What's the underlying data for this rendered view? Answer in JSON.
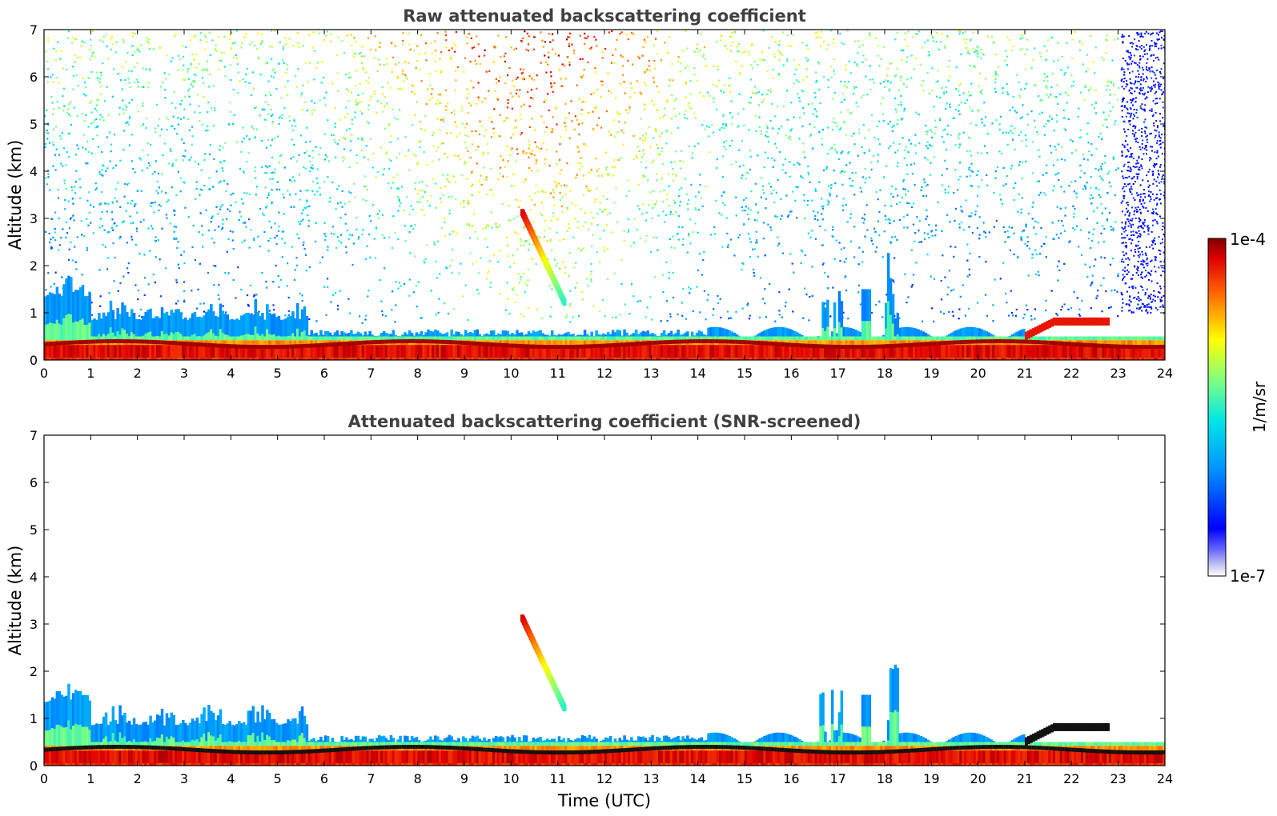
{
  "figure": {
    "colorbar": {
      "max_label": "1e-4",
      "min_label": "1e-7",
      "unit_label": "1/m/sr",
      "scale": "log",
      "range": [
        1e-07,
        0.0001
      ],
      "colormap": "jet"
    }
  },
  "chart_data": [
    {
      "type": "heatmap",
      "title": "Raw attenuated backscattering coefficient",
      "xlabel": "",
      "ylabel": "Altitude (km)",
      "xlim": [
        0,
        24
      ],
      "ylim": [
        0,
        7
      ],
      "xticks": [
        "0",
        "1",
        "2",
        "3",
        "4",
        "5",
        "6",
        "7",
        "8",
        "9",
        "10",
        "11",
        "12",
        "13",
        "14",
        "15",
        "16",
        "17",
        "18",
        "19",
        "20",
        "21",
        "22",
        "23",
        "24"
      ],
      "yticks": [
        "0",
        "1",
        "2",
        "3",
        "4",
        "5",
        "6",
        "7"
      ],
      "grid": false,
      "features": [
        {
          "kind": "boundary_layer",
          "t": [
            0,
            24
          ],
          "alt_top": 0.5
        },
        {
          "kind": "aerosol_plumes",
          "t": [
            0,
            5.6
          ],
          "alt_top": 1.5
        },
        {
          "kind": "cloud_fall",
          "t": [
            10.2,
            11.1
          ],
          "alt": [
            3.2,
            1.3
          ]
        },
        {
          "kind": "elevated_layer",
          "t": [
            21.0,
            22.8
          ],
          "alt": 0.85
        },
        {
          "kind": "background_noise",
          "t": [
            0,
            23
          ],
          "alt": [
            1,
            7
          ]
        }
      ]
    },
    {
      "type": "heatmap",
      "title": "Attenuated backscattering coefficient (SNR-screened)",
      "xlabel": "Time (UTC)",
      "ylabel": "Altitude (km)",
      "xlim": [
        0,
        24
      ],
      "ylim": [
        0,
        7
      ],
      "xticks": [
        "0",
        "1",
        "2",
        "3",
        "4",
        "5",
        "6",
        "7",
        "8",
        "9",
        "10",
        "11",
        "12",
        "13",
        "14",
        "15",
        "16",
        "17",
        "18",
        "19",
        "20",
        "21",
        "22",
        "23",
        "24"
      ],
      "yticks": [
        "0",
        "1",
        "2",
        "3",
        "4",
        "5",
        "6",
        "7"
      ],
      "grid": false,
      "features": [
        {
          "kind": "boundary_layer",
          "t": [
            0,
            24
          ],
          "alt_top": 0.5
        },
        {
          "kind": "aerosol_plumes",
          "t": [
            0,
            5.6
          ],
          "alt_top": 1.5
        },
        {
          "kind": "cloud_fall",
          "t": [
            10.2,
            11.1
          ],
          "alt": [
            3.2,
            1.3
          ]
        },
        {
          "kind": "elevated_layer",
          "t": [
            21.0,
            22.8
          ],
          "alt": 0.85
        }
      ]
    }
  ]
}
